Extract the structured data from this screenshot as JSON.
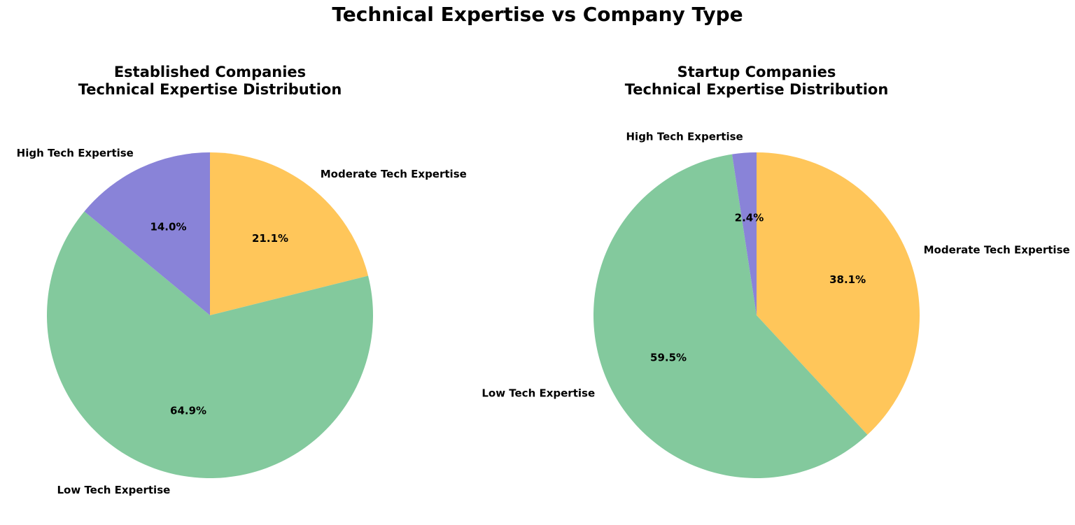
{
  "figure": {
    "title": "Technical Expertise vs Company Type"
  },
  "chart_data": [
    {
      "type": "pie",
      "title": "Established Companies",
      "subtitle": "Technical Expertise Distribution",
      "start_angle_deg": 90,
      "direction": "clockwise",
      "slices": [
        {
          "label": "Moderate Tech Expertise",
          "value": 21.1,
          "pct_label": "21.1%",
          "color": "#FFC65A"
        },
        {
          "label": "Low Tech Expertise",
          "value": 64.9,
          "pct_label": "64.9%",
          "color": "#83C99D"
        },
        {
          "label": "High Tech Expertise",
          "value": 14.0,
          "pct_label": "14.0%",
          "color": "#8983D8"
        }
      ]
    },
    {
      "type": "pie",
      "title": "Startup Companies",
      "subtitle": "Technical Expertise Distribution",
      "start_angle_deg": 90,
      "direction": "clockwise",
      "slices": [
        {
          "label": "Moderate Tech Expertise",
          "value": 38.1,
          "pct_label": "38.1%",
          "color": "#FFC65A"
        },
        {
          "label": "Low Tech Expertise",
          "value": 59.5,
          "pct_label": "59.5%",
          "color": "#83C99D"
        },
        {
          "label": "High Tech Expertise",
          "value": 2.4,
          "pct_label": "2.4%",
          "color": "#8983D8"
        }
      ]
    }
  ]
}
